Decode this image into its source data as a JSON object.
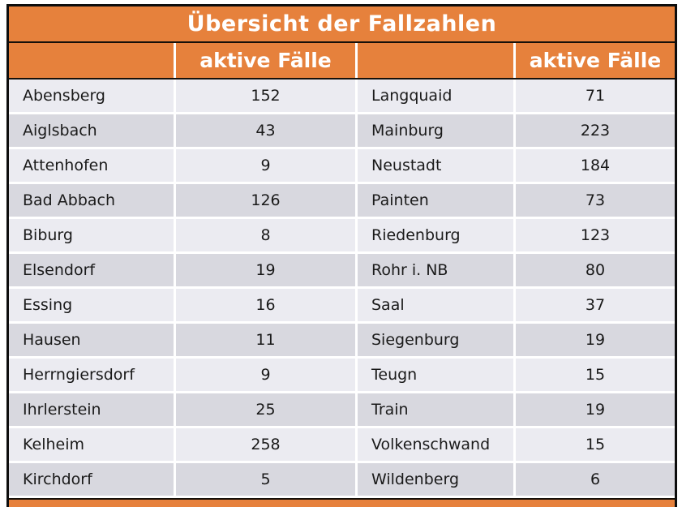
{
  "title": "Übersicht der Fallzahlen",
  "header": {
    "cases_label": "aktive Fälle"
  },
  "colors": {
    "accent_orange": "#e6813c",
    "row_light": "#ebebf1",
    "row_dark": "#d8d8df",
    "outer_border": "#0d0d0d",
    "header_text": "#ffffff",
    "cell_text": "#1a1a1a"
  },
  "chart_data": {
    "type": "table",
    "title": "Übersicht der Fallzahlen",
    "columns": [
      "",
      "aktive Fälle",
      "",
      "aktive Fälle"
    ],
    "rows": [
      [
        "Abensberg",
        152,
        "Langquaid",
        71
      ],
      [
        "Aiglsbach",
        43,
        "Mainburg",
        223
      ],
      [
        "Attenhofen",
        9,
        "Neustadt",
        184
      ],
      [
        "Bad Abbach",
        126,
        "Painten",
        73
      ],
      [
        "Biburg",
        8,
        "Riedenburg",
        123
      ],
      [
        "Elsendorf",
        19,
        "Rohr i. NB",
        80
      ],
      [
        "Essing",
        16,
        "Saal",
        37
      ],
      [
        "Hausen",
        11,
        "Siegenburg",
        19
      ],
      [
        "Herrngiersdorf",
        9,
        "Teugn",
        15
      ],
      [
        "Ihrlerstein",
        25,
        "Train",
        19
      ],
      [
        "Kelheim",
        258,
        "Volkenschwand",
        15
      ],
      [
        "Kirchdorf",
        5,
        "Wildenberg",
        6
      ]
    ]
  }
}
